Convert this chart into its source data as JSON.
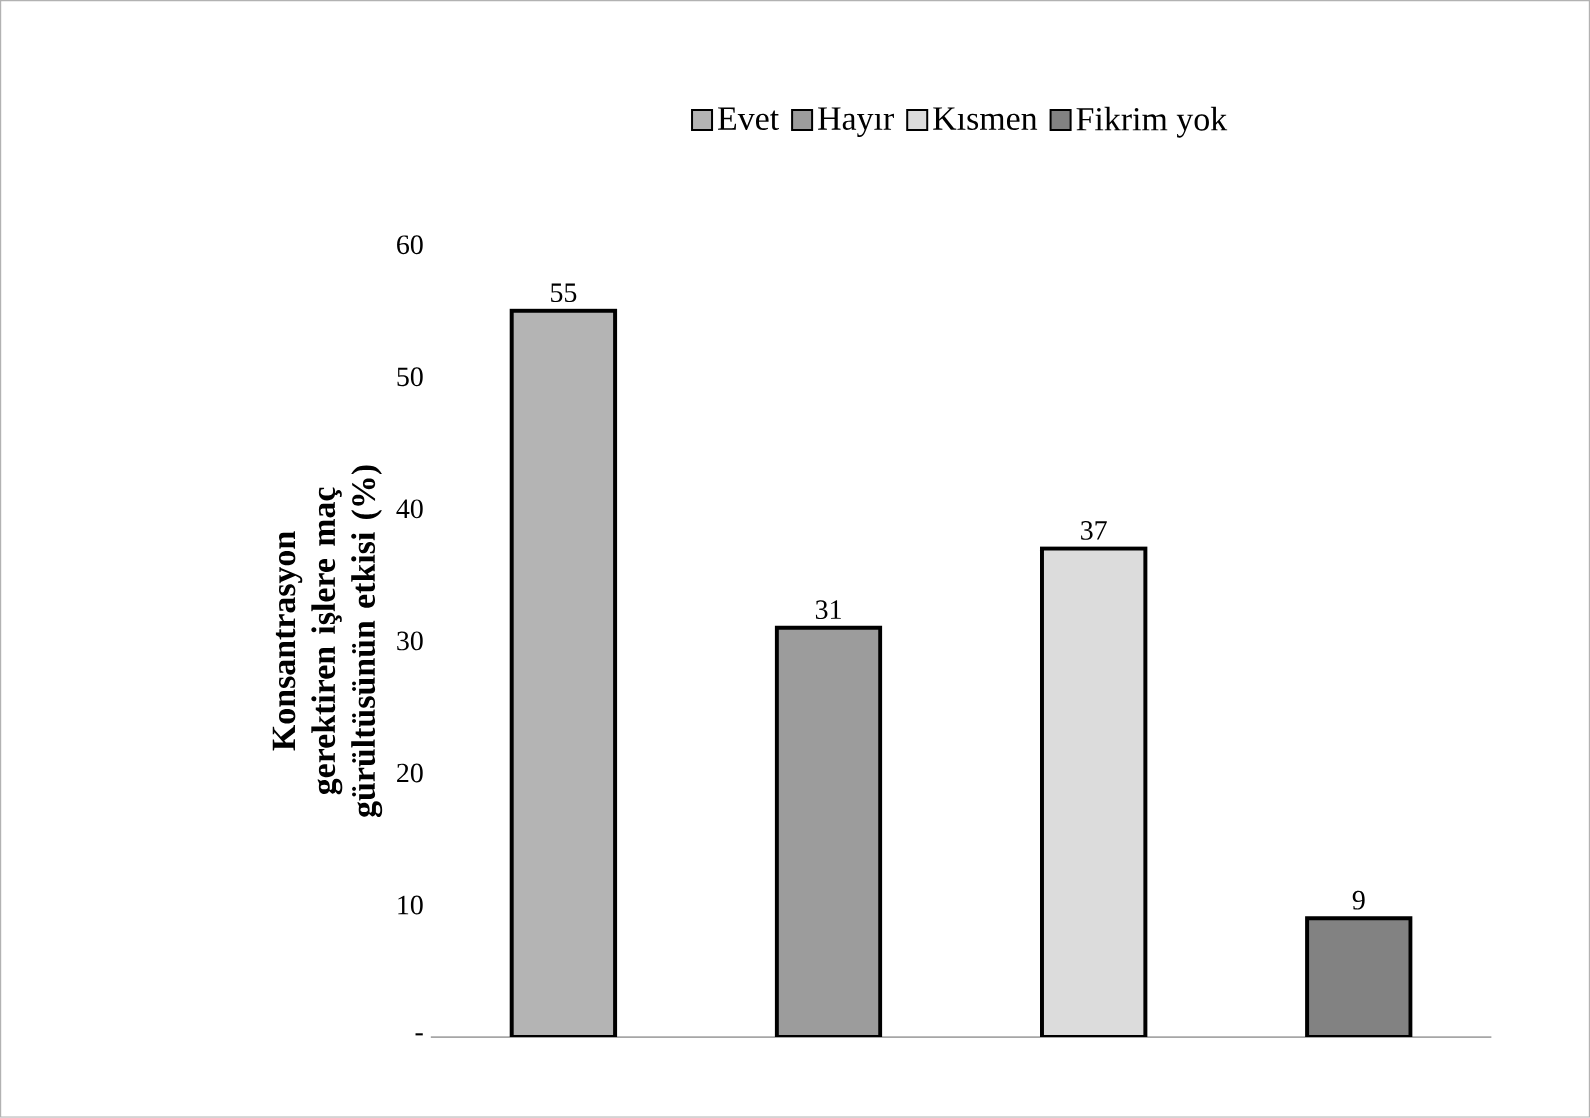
{
  "chart_data": {
    "type": "bar",
    "ylabel": "Konsantrasyon gerektiren işlere maç gürültüsünün etkisi (%)",
    "categories": [
      null,
      null,
      null,
      null
    ],
    "series": [
      {
        "name": "Evet",
        "color": "#b4b4b4",
        "values": [
          55,
          null,
          null,
          null
        ]
      },
      {
        "name": "Hayır",
        "color": "#9c9c9c",
        "values": [
          null,
          31,
          null,
          null
        ]
      },
      {
        "name": "Kısmen",
        "color": "#dcdcdc",
        "values": [
          null,
          null,
          37,
          null
        ]
      },
      {
        "name": "Fikrim yok",
        "color": "#828282",
        "values": [
          null,
          null,
          null,
          9
        ]
      }
    ],
    "ylim": [
      0,
      60
    ],
    "yticks": [
      {
        "value": 0,
        "label": "-"
      },
      10,
      20,
      30,
      40,
      50,
      60
    ],
    "data_labels": true,
    "legend": "top",
    "grid": false
  }
}
